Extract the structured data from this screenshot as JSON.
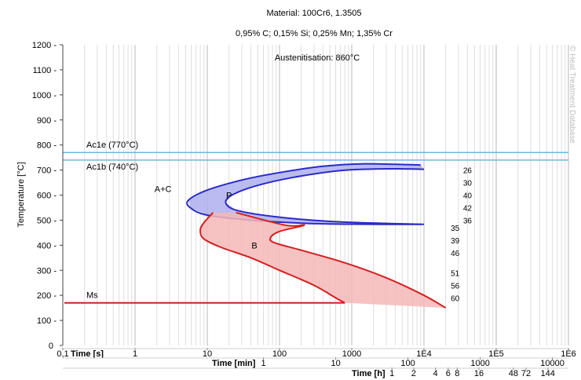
{
  "chart_data": {
    "type": "line",
    "title": "Material: 100Cr6, 1.3505",
    "subtitle": "0,95% C; 0,15% Si; 0,25% Mn; 1,35% Cr",
    "annotation": "Austenitisation: 860°C",
    "watermark": "© Heat Treatment Database",
    "ylabel": "Temperature [°C]",
    "ylim": [
      0,
      1200
    ],
    "y_ticks": [
      "0",
      "100",
      "200",
      "300",
      "400",
      "500",
      "600",
      "700",
      "800",
      "900",
      "1000",
      "1100",
      "1200"
    ],
    "x_scale": "log",
    "xlim_seconds": [
      0.1,
      1000000
    ],
    "x_axes": [
      {
        "label": "Time [s]",
        "ticks": [
          {
            "t": 0.1,
            "text": "0,1"
          },
          {
            "t": 1,
            "text": "1"
          },
          {
            "t": 10,
            "text": "10"
          },
          {
            "t": 100,
            "text": "100"
          },
          {
            "t": 1000,
            "text": "1000"
          },
          {
            "t": 10000,
            "text": "1E4"
          },
          {
            "t": 100000,
            "text": "1E5"
          },
          {
            "t": 1000000,
            "text": "1E6"
          }
        ]
      },
      {
        "label": "Time [min]",
        "ticks": [
          {
            "t": 60,
            "text": "1"
          },
          {
            "t": 600,
            "text": "10"
          },
          {
            "t": 6000,
            "text": "100"
          },
          {
            "t": 60000,
            "text": "1000"
          },
          {
            "t": 600000,
            "text": "10000"
          }
        ]
      },
      {
        "label": "Time [h]",
        "ticks": [
          {
            "t": 3600,
            "text": "1"
          },
          {
            "t": 7200,
            "text": "2"
          },
          {
            "t": 14400,
            "text": "4"
          },
          {
            "t": 21600,
            "text": "6"
          },
          {
            "t": 28800,
            "text": "8"
          },
          {
            "t": 57600,
            "text": "16"
          },
          {
            "t": 172800,
            "text": "48"
          },
          {
            "t": 259200,
            "text": "72"
          },
          {
            "t": 518400,
            "text": "144"
          }
        ]
      }
    ],
    "reference_lines": [
      {
        "label": "Ac1e (770°C)",
        "y": 770,
        "color": "#6fb6e0"
      },
      {
        "label": "Ac1b (740°C)",
        "y": 740,
        "color": "#6fb6e0"
      },
      {
        "label": "Ms",
        "y": 170,
        "color": "#d42020"
      }
    ],
    "regions": [
      {
        "name": "P",
        "phase_label": "A+C",
        "color": "#2a2ac8",
        "fill": "#aeb0ee",
        "start_curve": [
          [
            9000,
            720
          ],
          [
            1500,
            725
          ],
          [
            400,
            715
          ],
          [
            100,
            690
          ],
          [
            30,
            660
          ],
          [
            10,
            620
          ],
          [
            5.5,
            580
          ],
          [
            5.8,
            550
          ],
          [
            10,
            520
          ],
          [
            40,
            500
          ],
          [
            200,
            488
          ],
          [
            1000,
            484
          ],
          [
            9000,
            483
          ]
        ],
        "finish_curve": [
          [
            10000,
            703
          ],
          [
            3000,
            705
          ],
          [
            700,
            698
          ],
          [
            150,
            670
          ],
          [
            45,
            635
          ],
          [
            22,
            600
          ],
          [
            18,
            570
          ],
          [
            25,
            540
          ],
          [
            80,
            515
          ],
          [
            500,
            495
          ],
          [
            4000,
            486
          ],
          [
            10000,
            483
          ]
        ]
      },
      {
        "name": "B",
        "color": "#d42020",
        "fill": "#f6b7b7",
        "start_curve": [
          [
            12,
            530
          ],
          [
            9,
            490
          ],
          [
            8,
            460
          ],
          [
            9,
            425
          ],
          [
            16,
            390
          ],
          [
            40,
            350
          ],
          [
            100,
            300
          ],
          [
            300,
            240
          ],
          [
            600,
            190
          ],
          [
            800,
            170
          ]
        ],
        "finish_curve": [
          [
            25,
            530
          ],
          [
            120,
            480
          ],
          [
            220,
            480
          ],
          [
            100,
            455
          ],
          [
            75,
            430
          ],
          [
            85,
            410
          ],
          [
            200,
            380
          ],
          [
            800,
            330
          ],
          [
            3000,
            270
          ],
          [
            10000,
            200
          ],
          [
            20000,
            150
          ]
        ]
      }
    ],
    "hardness_labels": [
      {
        "x": 40000,
        "y": 700,
        "text": "26"
      },
      {
        "x": 40000,
        "y": 650,
        "text": "30"
      },
      {
        "x": 40000,
        "y": 600,
        "text": "40"
      },
      {
        "x": 40000,
        "y": 550,
        "text": "42"
      },
      {
        "x": 40000,
        "y": 500,
        "text": "36"
      },
      {
        "x": 27000,
        "y": 470,
        "text": "35"
      },
      {
        "x": 27000,
        "y": 420,
        "text": "39"
      },
      {
        "x": 27000,
        "y": 370,
        "text": "46"
      },
      {
        "x": 27000,
        "y": 290,
        "text": "51"
      },
      {
        "x": 27000,
        "y": 240,
        "text": "56"
      },
      {
        "x": 27000,
        "y": 190,
        "text": "60"
      }
    ],
    "grid": true
  }
}
